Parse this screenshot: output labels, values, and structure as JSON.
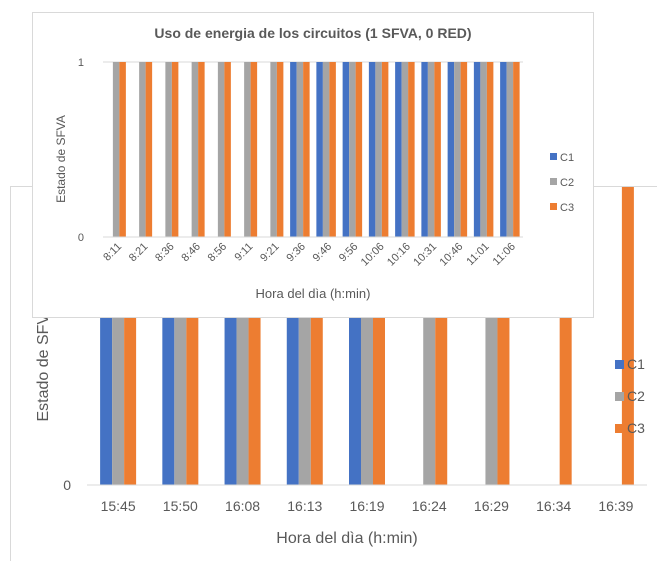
{
  "charts": [
    {
      "type": "bar",
      "title": "",
      "xlabel": "Hora del dìa (h:min)",
      "ylabel": "Estado de SFVA",
      "categories": [
        "15:45",
        "15:50",
        "16:08",
        "16:13",
        "16:19",
        "16:24",
        "16:29",
        "16:34",
        "16:39"
      ],
      "series": [
        {
          "name": "C1",
          "values": [
            1,
            1,
            1,
            1,
            1,
            0,
            0,
            0,
            0
          ]
        },
        {
          "name": "C2",
          "values": [
            1,
            1,
            1,
            1,
            1,
            1,
            1,
            0,
            0
          ]
        },
        {
          "name": "C3",
          "values": [
            1,
            1,
            1,
            1,
            1,
            1,
            1,
            1,
            1
          ]
        }
      ],
      "yticks": [
        "0"
      ],
      "ylim": [
        0,
        1
      ],
      "legend": "right",
      "colors": [
        "#4472c4",
        "#a5a5a5",
        "#ed7d31"
      ]
    },
    {
      "type": "bar",
      "title": "Uso de energia de los circuitos (1 SFVA, 0 RED)",
      "xlabel": "Hora del dìa (h:min)",
      "ylabel": "Estado de SFVA",
      "categories": [
        "8:11",
        "8:21",
        "8:36",
        "8:46",
        "8:56",
        "9:11",
        "9:21",
        "9:36",
        "9:46",
        "9:56",
        "10:06",
        "10:16",
        "10:31",
        "10:46",
        "11:01",
        "11:06"
      ],
      "series": [
        {
          "name": "C1",
          "values": [
            0,
            0,
            0,
            0,
            0,
            0,
            0,
            1,
            1,
            1,
            1,
            1,
            1,
            1,
            1,
            1
          ]
        },
        {
          "name": "C2",
          "values": [
            1,
            1,
            1,
            1,
            1,
            1,
            1,
            1,
            1,
            1,
            1,
            1,
            1,
            1,
            1,
            1
          ]
        },
        {
          "name": "C3",
          "values": [
            1,
            1,
            1,
            1,
            1,
            1,
            1,
            1,
            1,
            1,
            1,
            1,
            1,
            1,
            1,
            1
          ]
        }
      ],
      "yticks": [
        "0",
        "1"
      ],
      "ylim": [
        0,
        1
      ],
      "legend": "right",
      "colors": [
        "#4472c4",
        "#a5a5a5",
        "#ed7d31"
      ]
    }
  ],
  "chart_data": [
    {
      "type": "bar",
      "xlabel": "Hora del dìa (h:min)",
      "ylabel": "Estado de SFVA",
      "categories": [
        "15:45",
        "15:50",
        "16:08",
        "16:13",
        "16:19",
        "16:24",
        "16:29",
        "16:34",
        "16:39"
      ],
      "series": [
        {
          "name": "C1",
          "values": [
            1,
            1,
            1,
            1,
            1,
            0,
            0,
            0,
            0
          ]
        },
        {
          "name": "C2",
          "values": [
            1,
            1,
            1,
            1,
            1,
            1,
            1,
            0,
            0
          ]
        },
        {
          "name": "C3",
          "values": [
            1,
            1,
            1,
            1,
            1,
            1,
            1,
            1,
            1
          ]
        }
      ],
      "ylim": [
        0,
        1
      ],
      "legend": "right"
    },
    {
      "type": "bar",
      "title": "Uso de energia de los circuitos (1 SFVA, 0 RED)",
      "xlabel": "Hora del dìa (h:min)",
      "ylabel": "Estado de SFVA",
      "categories": [
        "8:11",
        "8:21",
        "8:36",
        "8:46",
        "8:56",
        "9:11",
        "9:21",
        "9:36",
        "9:46",
        "9:56",
        "10:06",
        "10:16",
        "10:31",
        "10:46",
        "11:01",
        "11:06"
      ],
      "series": [
        {
          "name": "C1",
          "values": [
            0,
            0,
            0,
            0,
            0,
            0,
            0,
            1,
            1,
            1,
            1,
            1,
            1,
            1,
            1,
            1
          ]
        },
        {
          "name": "C2",
          "values": [
            1,
            1,
            1,
            1,
            1,
            1,
            1,
            1,
            1,
            1,
            1,
            1,
            1,
            1,
            1,
            1
          ]
        },
        {
          "name": "C3",
          "values": [
            1,
            1,
            1,
            1,
            1,
            1,
            1,
            1,
            1,
            1,
            1,
            1,
            1,
            1,
            1,
            1
          ]
        }
      ],
      "ylim": [
        0,
        1
      ],
      "legend": "right"
    }
  ]
}
